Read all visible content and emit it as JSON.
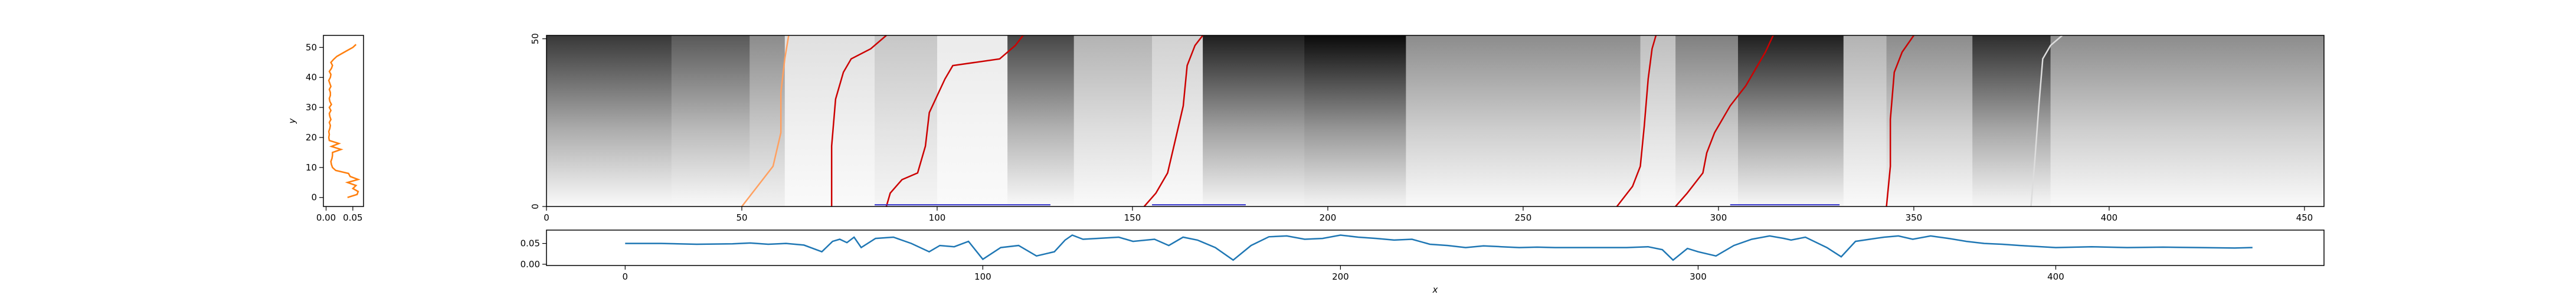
{
  "chart_data": [
    {
      "id": "side-profile",
      "type": "line",
      "xlabel": "",
      "ylabel": "y",
      "xlim": [
        -0.005,
        0.07
      ],
      "ylim": [
        -3,
        54
      ],
      "xticks": [
        0.0,
        0.05
      ],
      "xtick_labels": [
        "0.00",
        "0.05"
      ],
      "yticks": [
        0,
        10,
        20,
        30,
        40,
        50
      ],
      "ytick_labels": [
        "0",
        "10",
        "20",
        "30",
        "40",
        "50"
      ],
      "grid": false,
      "series": [
        {
          "color": "#ff7f0e",
          "y": [
            0,
            1,
            2,
            3,
            4,
            5,
            6,
            7,
            8,
            9,
            10,
            11,
            12,
            13,
            14,
            15,
            16,
            17,
            18,
            19,
            20,
            21,
            22,
            23,
            24,
            25,
            26,
            27,
            28,
            29,
            30,
            31,
            32,
            33,
            34,
            35,
            36,
            37,
            38,
            39,
            40,
            41,
            42,
            43,
            44,
            45,
            46,
            47,
            48,
            49,
            50,
            51
          ],
          "x": [
            0.04,
            0.058,
            0.06,
            0.05,
            0.056,
            0.04,
            0.06,
            0.045,
            0.042,
            0.018,
            0.012,
            0.01,
            0.009,
            0.011,
            0.012,
            0.012,
            0.028,
            0.01,
            0.024,
            0.006,
            0.005,
            0.006,
            0.005,
            0.007,
            0.008,
            0.006,
            0.009,
            0.007,
            0.006,
            0.009,
            0.006,
            0.01,
            0.007,
            0.006,
            0.008,
            0.008,
            0.006,
            0.009,
            0.007,
            0.005,
            0.008,
            0.009,
            0.006,
            0.01,
            0.012,
            0.009,
            0.014,
            0.02,
            0.03,
            0.04,
            0.05,
            0.056
          ]
        }
      ]
    },
    {
      "id": "heatmap",
      "type": "heatmap",
      "colormap": "gray_r",
      "xlim": [
        0,
        455
      ],
      "ylim": [
        0,
        51
      ],
      "xticks": [
        0,
        50,
        100,
        150,
        200,
        250,
        300,
        350,
        400,
        450
      ],
      "xtick_labels": [
        "0",
        "50",
        "100",
        "150",
        "200",
        "250",
        "300",
        "350",
        "400",
        "450"
      ],
      "yticks": [
        0,
        50
      ],
      "ytick_labels": [
        "0",
        "50"
      ],
      "segments": [
        {
          "x0": 0,
          "x1": 32,
          "top": 0.78,
          "bottom": 0.02
        },
        {
          "x0": 32,
          "x1": 52,
          "top": 0.65,
          "bottom": 0.02
        },
        {
          "x0": 52,
          "x1": 61,
          "top": 0.45,
          "bottom": 0.05
        },
        {
          "x0": 61,
          "x1": 84,
          "top": 0.12,
          "bottom": 0.02
        },
        {
          "x0": 84,
          "x1": 100,
          "top": 0.22,
          "bottom": 0.04
        },
        {
          "x0": 100,
          "x1": 118,
          "top": 0.08,
          "bottom": 0.02
        },
        {
          "x0": 118,
          "x1": 135,
          "top": 0.72,
          "bottom": 0.02
        },
        {
          "x0": 135,
          "x1": 155,
          "top": 0.3,
          "bottom": 0.02
        },
        {
          "x0": 155,
          "x1": 168,
          "top": 0.18,
          "bottom": 0.02
        },
        {
          "x0": 168,
          "x1": 194,
          "top": 0.88,
          "bottom": 0.03
        },
        {
          "x0": 194,
          "x1": 220,
          "top": 0.96,
          "bottom": 0.04
        },
        {
          "x0": 220,
          "x1": 280,
          "top": 0.45,
          "bottom": 0.02
        },
        {
          "x0": 280,
          "x1": 289,
          "top": 0.25,
          "bottom": 0.02
        },
        {
          "x0": 289,
          "x1": 305,
          "top": 0.5,
          "bottom": 0.02
        },
        {
          "x0": 305,
          "x1": 332,
          "top": 0.88,
          "bottom": 0.03
        },
        {
          "x0": 332,
          "x1": 343,
          "top": 0.3,
          "bottom": 0.02
        },
        {
          "x0": 343,
          "x1": 365,
          "top": 0.45,
          "bottom": 0.02
        },
        {
          "x0": 365,
          "x1": 385,
          "top": 0.82,
          "bottom": 0.03
        },
        {
          "x0": 385,
          "x1": 455,
          "top": 0.45,
          "bottom": 0.02
        }
      ],
      "paths": [
        {
          "color": "#ffa060",
          "points": [
            [
              50,
              0
            ],
            [
              54,
              6
            ],
            [
              58,
              12
            ],
            [
              60,
              22
            ],
            [
              60,
              34
            ],
            [
              61,
              44
            ],
            [
              62,
              51
            ]
          ]
        },
        {
          "color": "#cc0000",
          "points": [
            [
              73,
              0
            ],
            [
              73,
              18
            ],
            [
              74,
              32
            ],
            [
              76,
              40
            ],
            [
              78,
              44
            ],
            [
              83,
              47
            ],
            [
              87,
              51
            ]
          ]
        },
        {
          "color": "#cc0000",
          "points": [
            [
              87,
              0
            ],
            [
              88,
              4
            ],
            [
              91,
              8
            ],
            [
              95,
              10
            ],
            [
              97,
              18
            ],
            [
              98,
              28
            ],
            [
              102,
              38
            ],
            [
              104,
              42
            ],
            [
              116,
              44
            ],
            [
              120,
              48
            ],
            [
              122,
              51
            ]
          ]
        },
        {
          "color": "#cc0000",
          "points": [
            [
              153,
              0
            ],
            [
              156,
              4
            ],
            [
              159,
              10
            ],
            [
              161,
              20
            ],
            [
              163,
              30
            ],
            [
              164,
              42
            ],
            [
              166,
              48
            ],
            [
              168,
              51
            ]
          ]
        },
        {
          "color": "#cc0000",
          "points": [
            [
              274,
              0
            ],
            [
              278,
              6
            ],
            [
              280,
              12
            ],
            [
              281,
              24
            ],
            [
              282,
              38
            ],
            [
              283,
              47
            ],
            [
              284,
              51
            ]
          ]
        },
        {
          "color": "#cc0000",
          "points": [
            [
              289,
              0
            ],
            [
              292,
              4
            ],
            [
              296,
              10
            ],
            [
              297,
              16
            ],
            [
              299,
              22
            ],
            [
              303,
              30
            ],
            [
              307,
              36
            ],
            [
              310,
              42
            ],
            [
              312,
              46
            ],
            [
              314,
              51
            ]
          ]
        },
        {
          "color": "#cc0000",
          "points": [
            [
              343,
              0
            ],
            [
              344,
              12
            ],
            [
              344,
              26
            ],
            [
              345,
              40
            ],
            [
              347,
              46
            ],
            [
              350,
              51
            ]
          ]
        },
        {
          "color": "#dddddd",
          "points": [
            [
              380,
              0
            ],
            [
              381,
              14
            ],
            [
              382,
              30
            ],
            [
              383,
              44
            ],
            [
              385,
              48
            ],
            [
              388,
              51
            ]
          ]
        }
      ],
      "hlines": [
        {
          "y": 0.5,
          "x0": 84,
          "x1": 129,
          "color": "#3333cc"
        },
        {
          "y": 0.5,
          "x0": 155,
          "x1": 179,
          "color": "#3333cc"
        },
        {
          "y": 0.5,
          "x0": 303,
          "x1": 331,
          "color": "#3333cc"
        }
      ]
    },
    {
      "id": "bottom-line",
      "type": "line",
      "xlabel": "x",
      "ylabel": "",
      "xlim": [
        -22,
        475
      ],
      "ylim": [
        -0.003,
        0.082
      ],
      "xticks": [
        0,
        100,
        200,
        300,
        400
      ],
      "xtick_labels": [
        "0",
        "100",
        "200",
        "300",
        "400"
      ],
      "yticks": [
        0.0,
        0.05
      ],
      "ytick_labels": [
        "0.00",
        "0.05"
      ],
      "grid": false,
      "series": [
        {
          "color": "#1f77b4",
          "x": [
            0,
            10,
            20,
            30,
            35,
            40,
            45,
            50,
            55,
            58,
            60,
            62,
            64,
            66,
            70,
            75,
            80,
            85,
            88,
            92,
            96,
            100,
            105,
            110,
            115,
            120,
            123,
            125,
            128,
            132,
            138,
            142,
            148,
            152,
            156,
            160,
            165,
            170,
            175,
            180,
            185,
            190,
            195,
            200,
            205,
            210,
            215,
            220,
            225,
            230,
            235,
            240,
            245,
            250,
            255,
            260,
            270,
            280,
            286,
            290,
            293,
            297,
            300,
            305,
            310,
            315,
            320,
            324,
            326,
            330,
            336,
            340,
            344,
            348,
            352,
            356,
            360,
            365,
            370,
            375,
            380,
            385,
            390,
            400,
            410,
            420,
            430,
            440,
            450,
            455
          ],
          "y": [
            0.05,
            0.05,
            0.048,
            0.049,
            0.051,
            0.048,
            0.05,
            0.046,
            0.03,
            0.055,
            0.06,
            0.052,
            0.065,
            0.04,
            0.062,
            0.065,
            0.05,
            0.03,
            0.045,
            0.042,
            0.055,
            0.012,
            0.04,
            0.045,
            0.02,
            0.03,
            0.058,
            0.07,
            0.06,
            0.062,
            0.065,
            0.055,
            0.06,
            0.045,
            0.065,
            0.058,
            0.04,
            0.01,
            0.045,
            0.066,
            0.068,
            0.06,
            0.062,
            0.07,
            0.065,
            0.062,
            0.058,
            0.06,
            0.048,
            0.045,
            0.04,
            0.044,
            0.042,
            0.04,
            0.041,
            0.04,
            0.04,
            0.04,
            0.042,
            0.035,
            0.01,
            0.038,
            0.03,
            0.02,
            0.045,
            0.06,
            0.068,
            0.062,
            0.058,
            0.065,
            0.04,
            0.018,
            0.055,
            0.06,
            0.065,
            0.068,
            0.06,
            0.068,
            0.062,
            0.055,
            0.05,
            0.048,
            0.045,
            0.04,
            0.042,
            0.04,
            0.041,
            0.04,
            0.039,
            0.04
          ]
        }
      ]
    }
  ]
}
